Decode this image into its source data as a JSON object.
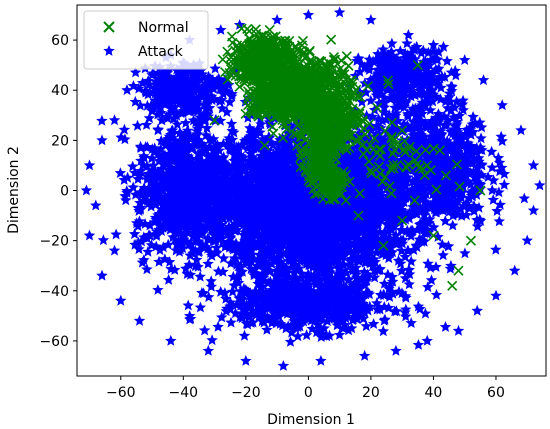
{
  "chart_data": {
    "type": "scatter",
    "xlabel": "Dimension 1",
    "ylabel": "Dimension 2",
    "xlim": [
      -74,
      76
    ],
    "ylim": [
      -74,
      74
    ],
    "x_ticks": [
      -60,
      -40,
      -20,
      0,
      20,
      40,
      60
    ],
    "y_ticks": [
      -60,
      -40,
      -20,
      0,
      20,
      40,
      60
    ],
    "grid": false,
    "legend_position": "top-left",
    "series": [
      {
        "name": "Normal",
        "marker": "x",
        "color": "#008000",
        "regions": [
          {
            "center": [
              -14,
              52
            ],
            "spread": [
              9,
              8
            ],
            "count": 500
          },
          {
            "center": [
              -2,
              42
            ],
            "spread": [
              14,
              10
            ],
            "count": 500
          },
          {
            "center": [
              6,
              28
            ],
            "spread": [
              10,
              10
            ],
            "count": 350
          },
          {
            "center": [
              -10,
              36
            ],
            "spread": [
              8,
              7
            ],
            "count": 250
          },
          {
            "center": [
              4,
              12
            ],
            "spread": [
              5,
              10
            ],
            "count": 180
          },
          {
            "center": [
              8,
              2
            ],
            "spread": [
              4,
              6
            ],
            "count": 80
          },
          {
            "center": [
              28,
              14
            ],
            "spread": [
              16,
              10
            ],
            "count": 60
          }
        ],
        "points": [
          [
            30,
            24
          ],
          [
            38,
            10
          ],
          [
            44,
            6
          ],
          [
            55,
            0
          ],
          [
            48,
            -32
          ],
          [
            46,
            -38
          ],
          [
            -14,
            18
          ],
          [
            -30,
            28
          ],
          [
            16,
            -10
          ],
          [
            24,
            -22
          ],
          [
            34,
            -4
          ],
          [
            40,
            -18
          ],
          [
            12,
            40
          ],
          [
            22,
            33
          ],
          [
            35,
            50
          ],
          [
            30,
            -12
          ],
          [
            52,
            -20
          ]
        ]
      },
      {
        "name": "Attack",
        "marker": "*",
        "color": "#0000ff",
        "regions": [
          {
            "center": [
              0,
              -5
            ],
            "spread": [
              30,
              27
            ],
            "count": 3200
          },
          {
            "center": [
              -40,
              0
            ],
            "spread": [
              14,
              24
            ],
            "count": 700
          },
          {
            "center": [
              40,
              10
            ],
            "spread": [
              16,
              24
            ],
            "count": 700
          },
          {
            "center": [
              0,
              -45
            ],
            "spread": [
              25,
              10
            ],
            "count": 600
          },
          {
            "center": [
              30,
              45
            ],
            "spread": [
              12,
              10
            ],
            "count": 300
          },
          {
            "center": [
              -40,
              40
            ],
            "spread": [
              12,
              10
            ],
            "count": 300
          }
        ],
        "points": [
          [
            -71,
            0
          ],
          [
            -68,
            -6
          ],
          [
            -70,
            10
          ],
          [
            -66,
            20
          ],
          [
            -62,
            -24
          ],
          [
            -62,
            28
          ],
          [
            -58,
            40
          ],
          [
            -50,
            46
          ],
          [
            -44,
            54
          ],
          [
            -38,
            60
          ],
          [
            -28,
            64
          ],
          [
            -22,
            66
          ],
          [
            -10,
            68
          ],
          [
            0,
            70
          ],
          [
            10,
            71
          ],
          [
            20,
            68
          ],
          [
            32,
            62
          ],
          [
            40,
            58
          ],
          [
            50,
            52
          ],
          [
            56,
            44
          ],
          [
            62,
            34
          ],
          [
            68,
            24
          ],
          [
            72,
            10
          ],
          [
            74,
            2
          ],
          [
            72,
            -8
          ],
          [
            70,
            -20
          ],
          [
            66,
            -32
          ],
          [
            60,
            -42
          ],
          [
            54,
            -48
          ],
          [
            48,
            -56
          ],
          [
            38,
            -60
          ],
          [
            28,
            -64
          ],
          [
            18,
            -66
          ],
          [
            4,
            -68
          ],
          [
            -8,
            -70
          ],
          [
            -20,
            -68
          ],
          [
            -32,
            -64
          ],
          [
            -44,
            -60
          ],
          [
            -54,
            -52
          ],
          [
            -60,
            -44
          ],
          [
            -66,
            -34
          ],
          [
            -70,
            -18
          ]
        ]
      }
    ]
  }
}
